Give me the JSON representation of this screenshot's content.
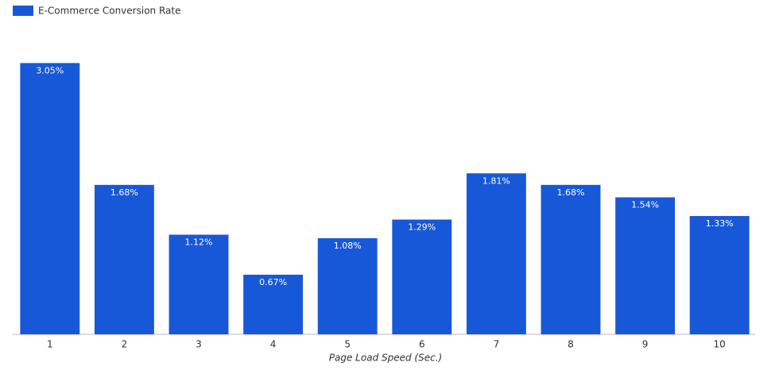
{
  "chart_data": {
    "type": "bar",
    "x_label": "Page Load Speed (Sec.)",
    "categories": [
      "1",
      "2",
      "3",
      "4",
      "5",
      "6",
      "7",
      "8",
      "9",
      "10"
    ],
    "series": [
      {
        "name": "E-Commerce Conversion Rate",
        "color": "#1758d8",
        "values": [
          3.05,
          1.68,
          1.12,
          0.67,
          1.08,
          1.29,
          1.81,
          1.68,
          1.54,
          1.33
        ],
        "value_labels": [
          "3.05%",
          "1.68%",
          "1.12%",
          "0.67%",
          "1.08%",
          "1.29%",
          "1.81%",
          "1.68%",
          "1.54%",
          "1.33%"
        ]
      }
    ]
  }
}
